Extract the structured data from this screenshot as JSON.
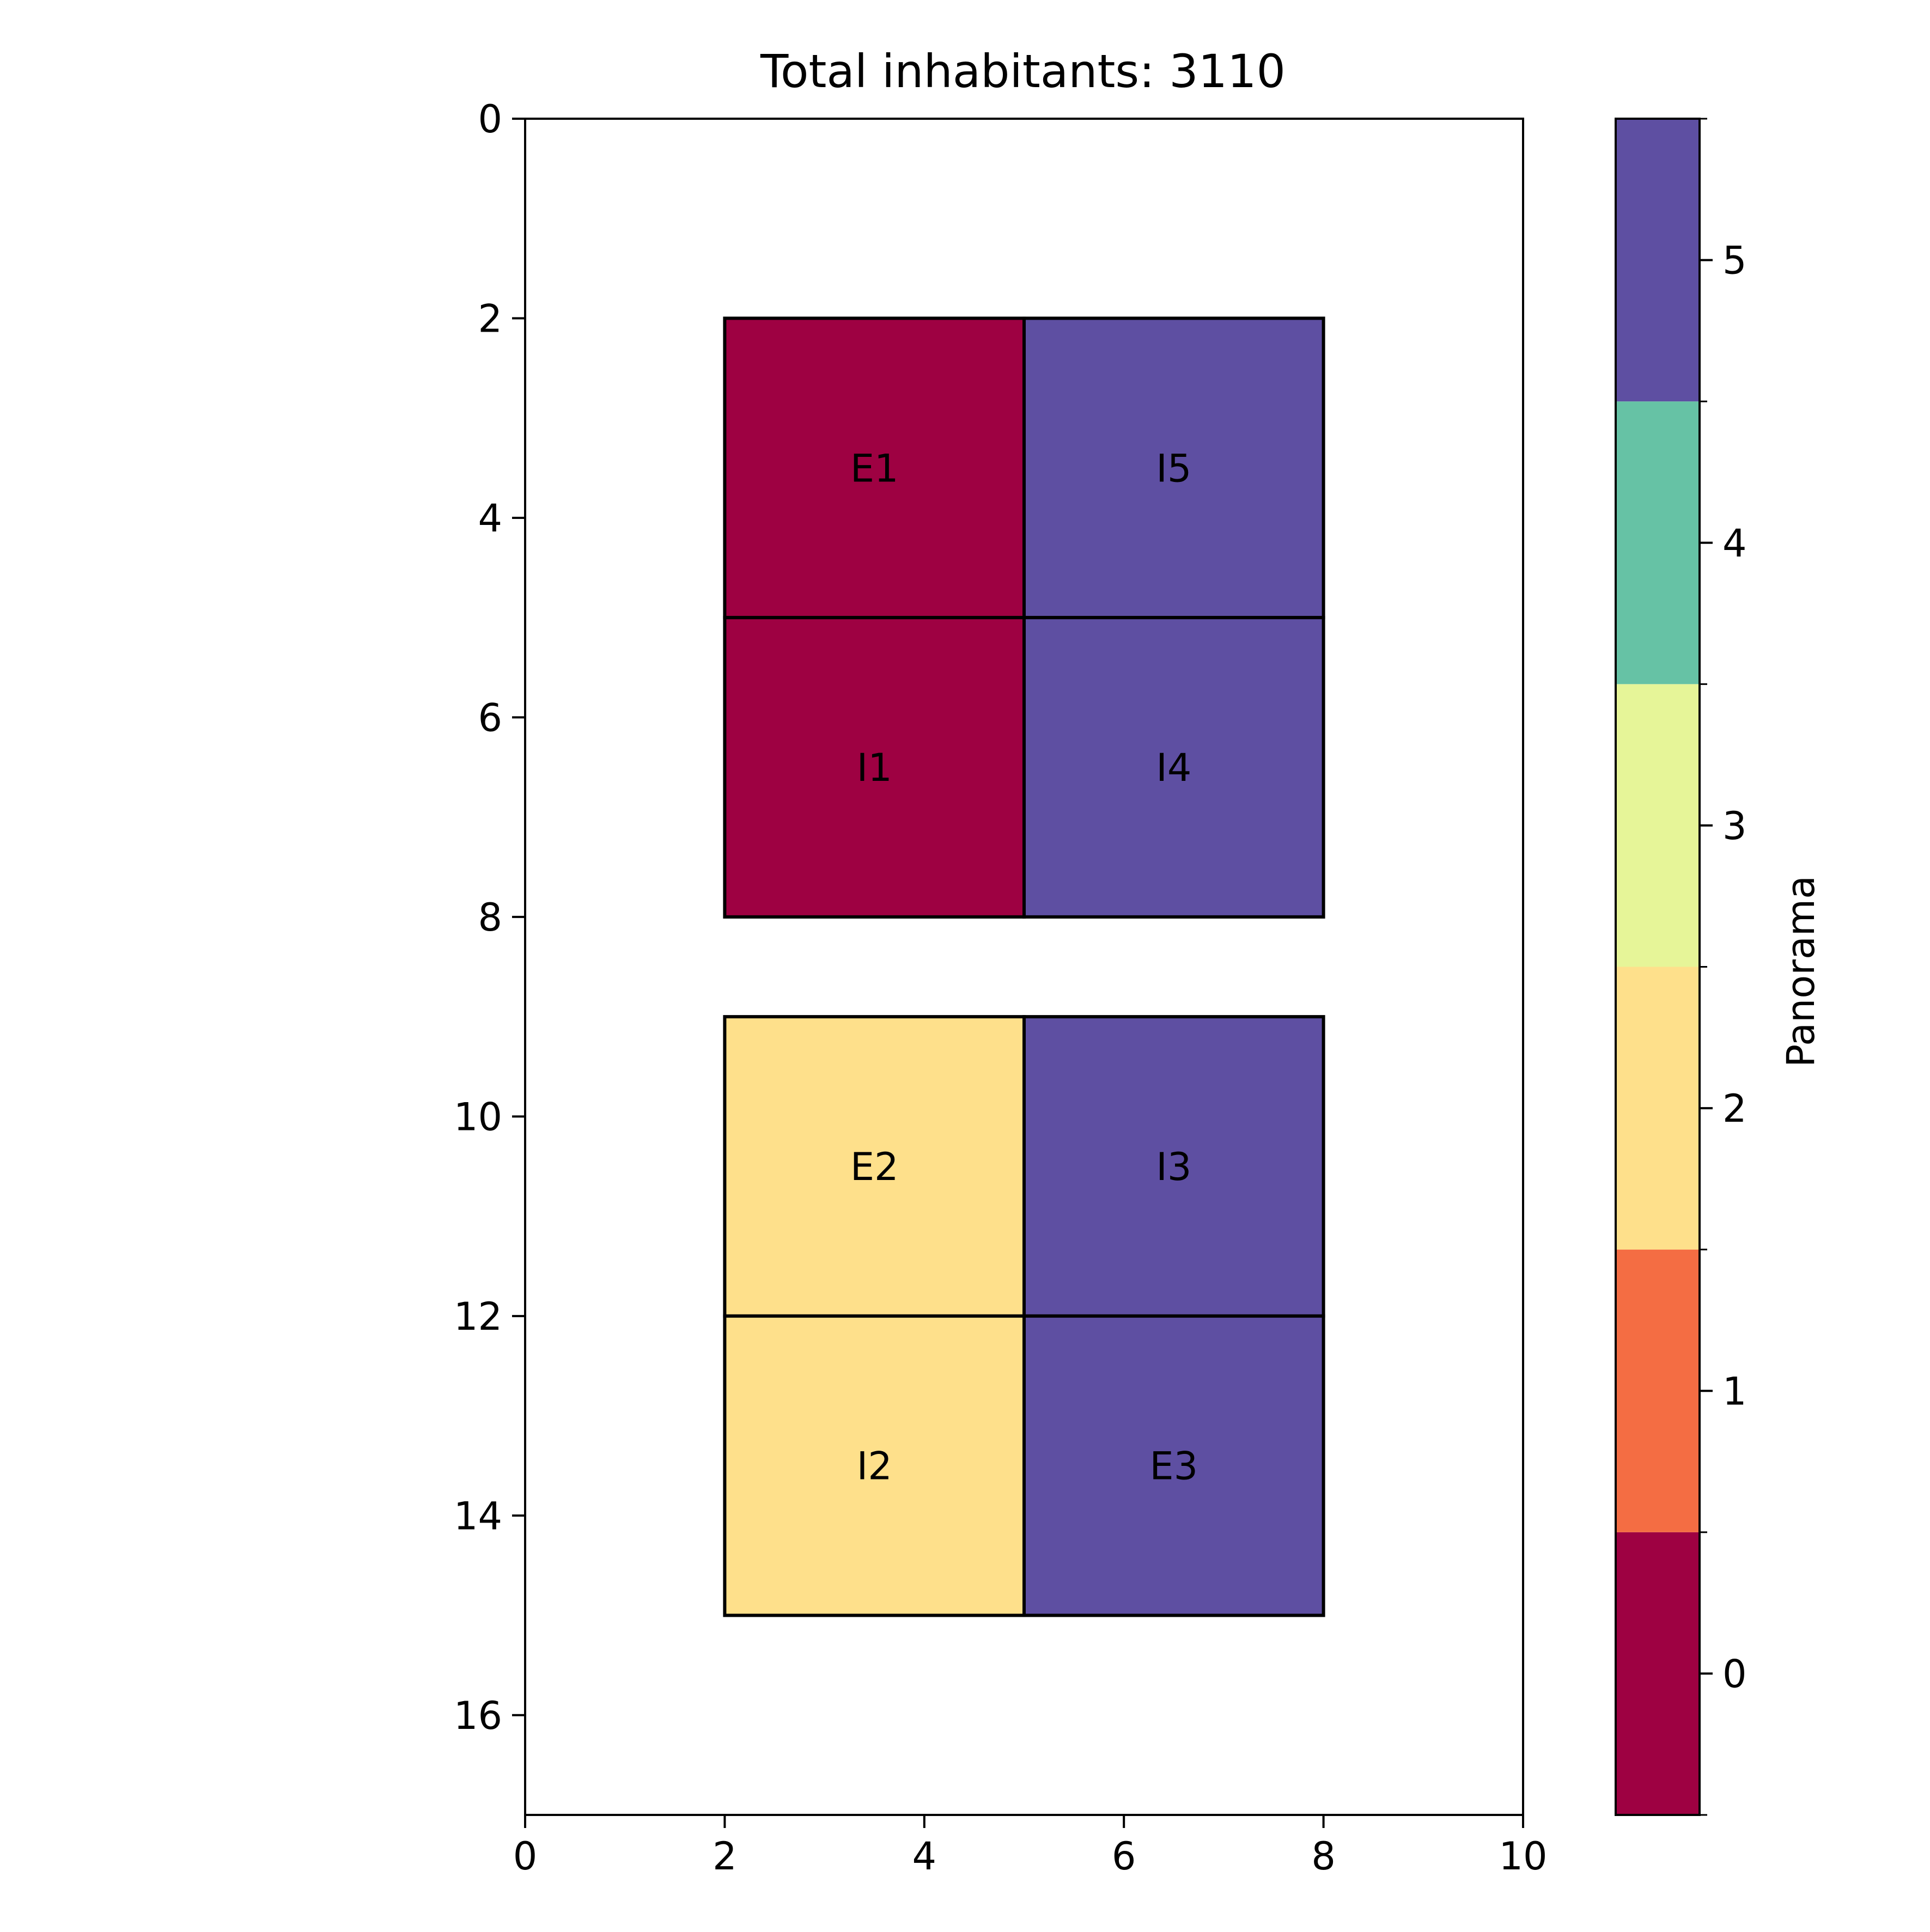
{
  "chart_data": {
    "type": "heatmap",
    "title": "Total inhabitants: 3110",
    "xlim": [
      0,
      10
    ],
    "ylim": [
      17,
      0
    ],
    "y_inverted": true,
    "x_ticks": [
      0,
      2,
      4,
      6,
      8,
      10
    ],
    "y_ticks": [
      0,
      2,
      4,
      6,
      8,
      10,
      12,
      14,
      16
    ],
    "cells": [
      {
        "label": "E1",
        "x": [
          2,
          5
        ],
        "y": [
          2,
          5
        ],
        "value": 0
      },
      {
        "label": "I5",
        "x": [
          5,
          8
        ],
        "y": [
          2,
          5
        ],
        "value": 5
      },
      {
        "label": "I1",
        "x": [
          2,
          5
        ],
        "y": [
          5,
          8
        ],
        "value": 0
      },
      {
        "label": "I4",
        "x": [
          5,
          8
        ],
        "y": [
          5,
          8
        ],
        "value": 5
      },
      {
        "label": "E2",
        "x": [
          2,
          5
        ],
        "y": [
          9,
          12
        ],
        "value": 2
      },
      {
        "label": "I3",
        "x": [
          5,
          8
        ],
        "y": [
          9,
          12
        ],
        "value": 5
      },
      {
        "label": "I2",
        "x": [
          2,
          5
        ],
        "y": [
          12,
          15
        ],
        "value": 2
      },
      {
        "label": "E3",
        "x": [
          5,
          8
        ],
        "y": [
          12,
          15
        ],
        "value": 5
      }
    ],
    "colorbar": {
      "label": "Panorama",
      "range": [
        -0.5,
        5.5
      ],
      "ticks": [
        0,
        1,
        2,
        3,
        4,
        5
      ],
      "levels": [
        {
          "value": 0,
          "color": "#9e0142"
        },
        {
          "value": 1,
          "color": "#f46d43"
        },
        {
          "value": 2,
          "color": "#fee08b"
        },
        {
          "value": 3,
          "color": "#e6f598"
        },
        {
          "value": 4,
          "color": "#66c2a5"
        },
        {
          "value": 5,
          "color": "#5e4fa2"
        }
      ]
    }
  }
}
